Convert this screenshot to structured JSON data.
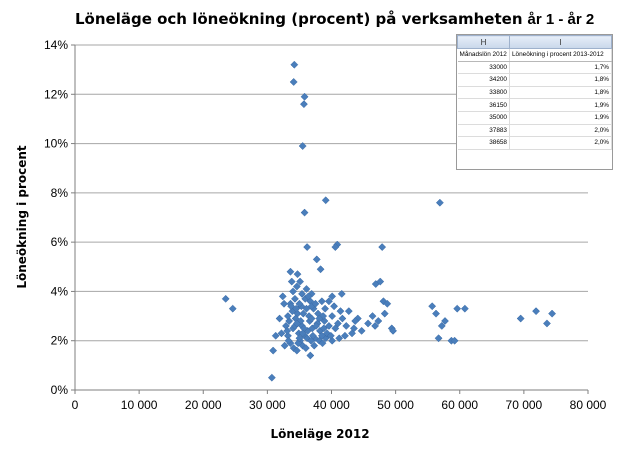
{
  "chart_data": {
    "type": "scatter",
    "title": "Löneläge och löneökning (procent) på verksamheten",
    "title_suffix": "år 1 - år 2",
    "xlabel": "Löneläge 2012",
    "ylabel": "Löneökning i procent",
    "xlim": [
      0,
      80000
    ],
    "ylim": [
      0,
      14
    ],
    "x_ticks": [
      "0",
      "10 000",
      "20 000",
      "30 000",
      "40 000",
      "50 000",
      "60 000",
      "70 000",
      "80 000"
    ],
    "y_ticks": [
      "0%",
      "2%",
      "4%",
      "6%",
      "8%",
      "10%",
      "12%",
      "14%"
    ],
    "grid": "horizontal",
    "marker_color": "#4a7ebb",
    "marker": "diamond",
    "points": [
      [
        34200,
        13.2
      ],
      [
        34100,
        12.5
      ],
      [
        35800,
        11.9
      ],
      [
        35700,
        11.6
      ],
      [
        35500,
        9.9
      ],
      [
        39100,
        7.7
      ],
      [
        35800,
        7.2
      ],
      [
        56900,
        7.6
      ],
      [
        36200,
        5.8
      ],
      [
        40900,
        5.9
      ],
      [
        40600,
        5.8
      ],
      [
        47900,
        5.8
      ],
      [
        33600,
        4.8
      ],
      [
        34700,
        4.7
      ],
      [
        37700,
        5.3
      ],
      [
        38300,
        4.9
      ],
      [
        33800,
        4.4
      ],
      [
        35100,
        4.4
      ],
      [
        34600,
        4.2
      ],
      [
        36100,
        4.1
      ],
      [
        46900,
        4.3
      ],
      [
        47600,
        4.4
      ],
      [
        23500,
        3.7
      ],
      [
        24600,
        3.3
      ],
      [
        32400,
        3.8
      ],
      [
        33600,
        3.5
      ],
      [
        36900,
        3.9
      ],
      [
        38500,
        3.6
      ],
      [
        39600,
        3.6
      ],
      [
        40100,
        3.8
      ],
      [
        41600,
        3.9
      ],
      [
        42700,
        3.2
      ],
      [
        44100,
        2.9
      ],
      [
        43700,
        2.8
      ],
      [
        46400,
        3.0
      ],
      [
        47300,
        2.8
      ],
      [
        46800,
        2.6
      ],
      [
        48100,
        3.6
      ],
      [
        48700,
        3.5
      ],
      [
        48300,
        3.1
      ],
      [
        49400,
        2.5
      ],
      [
        49600,
        2.4
      ],
      [
        55700,
        3.4
      ],
      [
        56300,
        3.1
      ],
      [
        57200,
        2.6
      ],
      [
        57700,
        2.8
      ],
      [
        56700,
        2.1
      ],
      [
        58700,
        2.0
      ],
      [
        59200,
        2.0
      ],
      [
        59600,
        3.3
      ],
      [
        60800,
        3.3
      ],
      [
        69500,
        2.9
      ],
      [
        71900,
        3.2
      ],
      [
        73600,
        2.7
      ],
      [
        74400,
        3.1
      ],
      [
        30700,
        0.5
      ],
      [
        30900,
        1.6
      ],
      [
        31300,
        2.2
      ],
      [
        32700,
        1.8
      ],
      [
        33200,
        2.2
      ],
      [
        33600,
        1.9
      ],
      [
        34100,
        1.7
      ],
      [
        34600,
        1.6
      ],
      [
        35100,
        2.0
      ],
      [
        35500,
        1.8
      ],
      [
        36000,
        1.7
      ],
      [
        36700,
        1.4
      ],
      [
        37300,
        1.8
      ],
      [
        38100,
        2.0
      ],
      [
        38600,
        1.9
      ],
      [
        39100,
        2.1
      ],
      [
        40100,
        2.0
      ],
      [
        41200,
        2.1
      ],
      [
        42100,
        2.2
      ],
      [
        43200,
        2.3
      ],
      [
        44700,
        2.4
      ],
      [
        45700,
        2.7
      ],
      [
        41700,
        2.9
      ],
      [
        42300,
        2.6
      ],
      [
        40600,
        2.5
      ],
      [
        39600,
        2.6
      ],
      [
        40100,
        3.0
      ],
      [
        38900,
        2.8
      ],
      [
        37900,
        3.1
      ],
      [
        37200,
        3.3
      ],
      [
        36700,
        3.6
      ],
      [
        35900,
        3.7
      ],
      [
        35300,
        3.4
      ],
      [
        34700,
        3.1
      ],
      [
        34300,
        3.7
      ],
      [
        33900,
        3.2
      ],
      [
        33400,
        2.8
      ],
      [
        32900,
        2.6
      ],
      [
        33200,
        3.0
      ],
      [
        34000,
        2.5
      ],
      [
        34400,
        2.9
      ],
      [
        34900,
        2.3
      ],
      [
        35400,
        2.6
      ],
      [
        35800,
        2.2
      ],
      [
        36300,
        2.4
      ],
      [
        36600,
        2.8
      ],
      [
        37000,
        2.5
      ],
      [
        37400,
        2.1
      ],
      [
        37800,
        2.7
      ],
      [
        38200,
        2.4
      ],
      [
        38500,
        2.2
      ],
      [
        35000,
        3.5
      ],
      [
        35600,
        3.1
      ],
      [
        36100,
        3.3
      ],
      [
        36500,
        3.0
      ],
      [
        36900,
        2.9
      ],
      [
        37600,
        2.6
      ],
      [
        34500,
        3.3
      ],
      [
        33700,
        3.4
      ],
      [
        32600,
        3.5
      ],
      [
        35200,
        2.8
      ],
      [
        35700,
        2.5
      ],
      [
        36200,
        2.1
      ],
      [
        34800,
        1.9
      ],
      [
        33300,
        2.0
      ],
      [
        37100,
        2.2
      ],
      [
        38800,
        2.5
      ],
      [
        39300,
        2.3
      ],
      [
        41000,
        2.7
      ],
      [
        43500,
        2.5
      ],
      [
        41400,
        3.2
      ],
      [
        40400,
        3.4
      ],
      [
        39000,
        3.3
      ],
      [
        38700,
        3.0
      ],
      [
        36400,
        3.8
      ],
      [
        35400,
        3.9
      ],
      [
        34000,
        4.0
      ],
      [
        36900,
        3.4
      ],
      [
        33100,
        2.4
      ],
      [
        32200,
        2.3
      ],
      [
        31900,
        2.9
      ],
      [
        35000,
        2.1
      ],
      [
        34300,
        2.6
      ],
      [
        37500,
        3.5
      ],
      [
        38100,
        2.9
      ],
      [
        39900,
        2.2
      ],
      [
        36800,
        2.0
      ],
      [
        35500,
        2.3
      ],
      [
        34600,
        2.7
      ]
    ]
  },
  "inset": {
    "col_h": "H",
    "col_i": "I",
    "header_left": "Månadslön 2012",
    "header_right": "Löneökning i procent 2013-2012",
    "rows": [
      [
        "33000",
        "1,7%"
      ],
      [
        "34200",
        "1,8%"
      ],
      [
        "33800",
        "1,8%"
      ],
      [
        "36150",
        "1,9%"
      ],
      [
        "35000",
        "1,9%"
      ],
      [
        "37883",
        "2,0%"
      ],
      [
        "38658",
        "2,0%"
      ]
    ]
  }
}
